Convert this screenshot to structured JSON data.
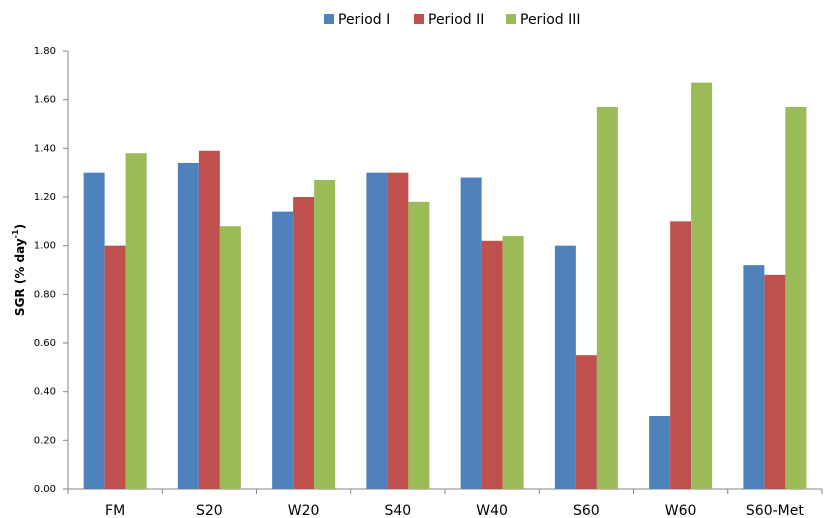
{
  "chart_data": {
    "type": "bar",
    "y_label": {
      "text": "SGR (% day",
      "superscript": "-1",
      "suffix": ")"
    },
    "categories": [
      "FM",
      "S20",
      "W20",
      "S40",
      "W40",
      "S60",
      "W60",
      "S60-Met"
    ],
    "series": [
      {
        "name": "Period I",
        "color": "#4f81bd",
        "values": [
          1.3,
          1.34,
          1.14,
          1.3,
          1.28,
          1.0,
          0.3,
          0.92
        ]
      },
      {
        "name": "Period II",
        "color": "#c0504d",
        "values": [
          1.0,
          1.39,
          1.2,
          1.3,
          1.02,
          0.55,
          1.1,
          0.88
        ]
      },
      {
        "name": "Period III",
        "color": "#9bbb59",
        "values": [
          1.38,
          1.08,
          1.27,
          1.18,
          1.04,
          1.57,
          1.67,
          1.57
        ]
      }
    ],
    "ylim": [
      0,
      1.8
    ],
    "yticks": [
      {
        "value": 0,
        "label": "0.00"
      },
      {
        "value": 0.2,
        "label": "0.20"
      },
      {
        "value": 0.4,
        "label": "0.40"
      },
      {
        "value": 0.6,
        "label": "0.60"
      },
      {
        "value": 0.8,
        "label": "0.80"
      },
      {
        "value": 1,
        "label": "1.00"
      },
      {
        "value": 1.2,
        "label": "1.20"
      },
      {
        "value": 1.4,
        "label": "1.40"
      },
      {
        "value": 1.6,
        "label": "1.60"
      },
      {
        "value": 1.8,
        "label": "1.80"
      }
    ],
    "grid": false,
    "legend": "top"
  }
}
